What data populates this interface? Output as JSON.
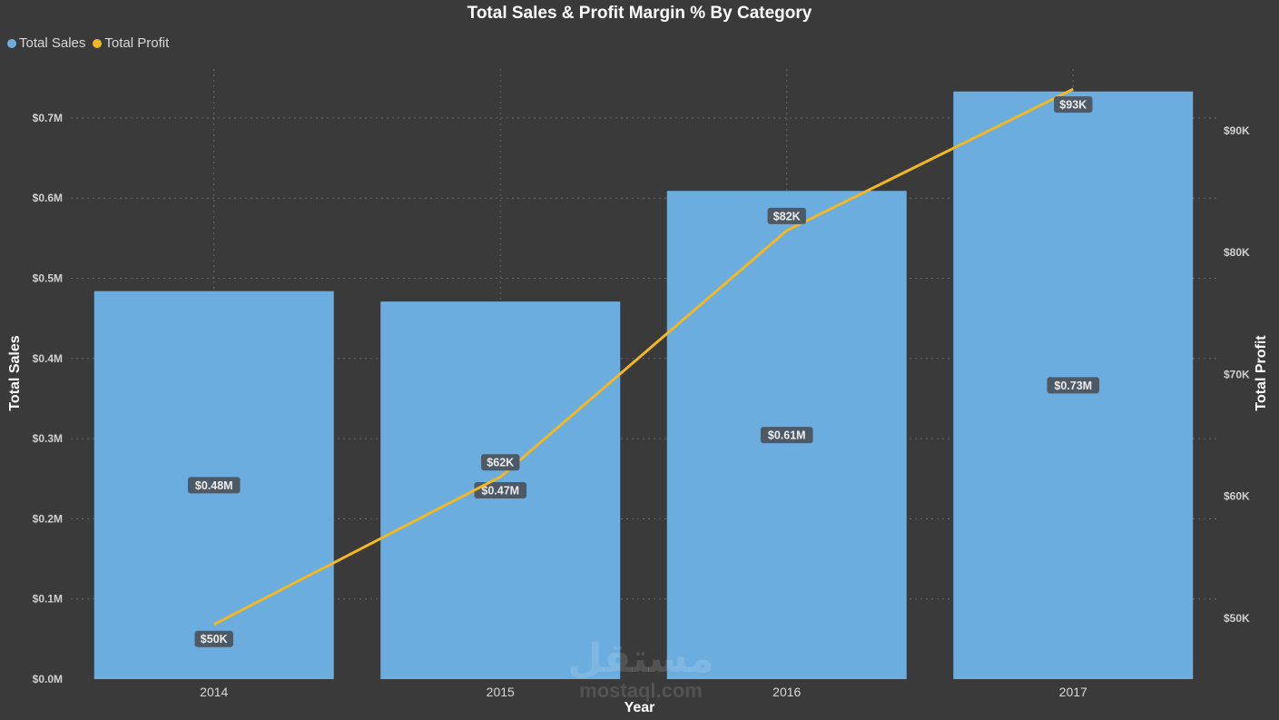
{
  "chart_data": {
    "type": "bar",
    "title": "Total Sales & Profit Margin % By Category",
    "xlabel": "Year",
    "ylabel": "Total Sales",
    "y2label": "Total Profit",
    "categories": [
      "2014",
      "2015",
      "2016",
      "2017"
    ],
    "series": [
      {
        "name": "Total Sales",
        "type": "bar",
        "axis": "left",
        "color": "#6caddf",
        "values": [
          0.484,
          0.471,
          0.609,
          0.733
        ],
        "labels": [
          "$0.48M",
          "$0.47M",
          "$0.61M",
          "$0.73M"
        ]
      },
      {
        "name": "Total Profit",
        "type": "line",
        "axis": "right",
        "color": "#f2b824",
        "values": [
          49.5,
          61.6,
          81.8,
          93.4
        ],
        "labels": [
          "$50K",
          "$62K",
          "$82K",
          "$93K"
        ]
      }
    ],
    "ylim": [
      0,
      0.75
    ],
    "y_ticks": [
      "$0.0M",
      "$0.1M",
      "$0.2M",
      "$0.3M",
      "$0.4M",
      "$0.5M",
      "$0.6M",
      "$0.7M"
    ],
    "y2lim": [
      45,
      95
    ],
    "y2_ticks": [
      "$50K",
      "$60K",
      "$70K",
      "$80K",
      "$90K"
    ],
    "grid": true,
    "legend": "top-left"
  },
  "watermark": {
    "main": "مستقل",
    "sub": "mostaql.com"
  },
  "colors": {
    "background": "#3a3a3a",
    "grid": "#6a6a6a",
    "label_bg": "#4d5a66"
  }
}
